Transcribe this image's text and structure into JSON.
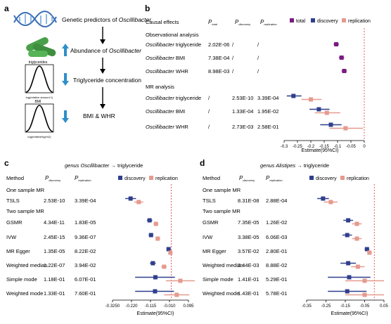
{
  "panel_a": {
    "label": "a",
    "steps": [
      {
        "text": "Genetic predictors of ",
        "italic": "Oscillibacter"
      },
      {
        "text": "Abundance of ",
        "italic": "Oscillibacter"
      },
      {
        "text": "Triglyceride concentration",
        "italic": ""
      },
      {
        "text": "BMI  &  WHR",
        "italic": ""
      }
    ],
    "plot1_title": "triglycerides",
    "plot2_title": "BMI",
    "axis_text": "log(relative amount 1)",
    "axis_text2": "log(relative/kg/m2)"
  },
  "panel_b": {
    "label": "b",
    "col_headers": {
      "effects": "Causal effects",
      "ptotal": "P",
      "ptotal_sub": "total",
      "pdisc": "P",
      "pdisc_sub": "discovery",
      "prep": "P",
      "prep_sub": "replication"
    },
    "legend": [
      {
        "name": "total",
        "color": "#7b1a80"
      },
      {
        "name": "discovery",
        "color": "#2f3f8c"
      },
      {
        "name": "replication",
        "color": "#e59a8e"
      }
    ],
    "sections": [
      "Observational analysis",
      "MR analysis"
    ],
    "xlabel": "Estimate(95%CI)",
    "xticks": [
      "-0.3",
      "-0.25",
      "-0.2",
      "-0.15",
      "-0.1",
      "-0.05",
      "0"
    ]
  },
  "panel_c": {
    "label": "c",
    "title_italic": "genus Oscillibacter",
    "title_rest": " → triglyceride",
    "col_headers": {
      "method": "Method",
      "pdisc": "P",
      "pdisc_sub": "discovery",
      "prep": "P",
      "prep_sub": "replication"
    },
    "legend": [
      {
        "name": "discovery",
        "color": "#2f3f8c"
      },
      {
        "name": "replication",
        "color": "#e59a8e"
      }
    ],
    "sections": [
      "One sample MR",
      "Two sample MR"
    ],
    "xlabel": "Estimate(95%CI)",
    "xticks": [
      "-0.3250",
      "-0.220",
      "-0.115",
      "-0.010",
      "0.095"
    ]
  },
  "panel_d": {
    "label": "d",
    "title_italic": "genus Alistipes",
    "title_rest": " → triglyceride",
    "col_headers": {
      "method": "Method",
      "pdisc": "P",
      "pdisc_sub": "discovery",
      "prep": "P",
      "prep_sub": "replication"
    },
    "legend": [
      {
        "name": "discovery",
        "color": "#2f3f8c"
      },
      {
        "name": "replication",
        "color": "#e59a8e"
      }
    ],
    "sections": [
      "One sample MR",
      "Two sample MR"
    ],
    "xlabel": "Estimate(95%CI)",
    "xticks": [
      "-0.35",
      "-0.25",
      "-0.15",
      "-0.05",
      "0.05"
    ]
  },
  "chart_data": [
    {
      "type": "forest",
      "panel": "b",
      "xlim": [
        -0.3,
        0.0
      ],
      "rows": [
        {
          "label": "Oscillibacter triglyceride",
          "p_total": "2.02E-06",
          "p_discovery": "/",
          "p_replication": "/",
          "section": 0,
          "total": [
            -0.105,
            -0.115,
            -0.095
          ],
          "discovery": null,
          "replication": null
        },
        {
          "label": "Oscillibacter BMI",
          "p_total": "7.38E-04",
          "p_discovery": "/",
          "p_replication": "/",
          "section": 0,
          "total": [
            -0.085,
            -0.095,
            -0.075
          ],
          "discovery": null,
          "replication": null
        },
        {
          "label": "Oscillibacter WHR",
          "p_total": "8.98E-03",
          "p_discovery": "/",
          "p_replication": "/",
          "section": 0,
          "total": [
            -0.075,
            -0.085,
            -0.065
          ],
          "discovery": null,
          "replication": null
        },
        {
          "label": "Oscillibacter triglyceride",
          "p_total": "/",
          "p_discovery": "2.53E-10",
          "p_replication": "3.39E-04",
          "section": 1,
          "total": null,
          "discovery": [
            -0.265,
            -0.29,
            -0.235
          ],
          "replication": [
            -0.2,
            -0.235,
            -0.16
          ]
        },
        {
          "label": "Oscillibacter BMI",
          "p_total": "/",
          "p_discovery": "1.33E-04",
          "p_replication": "1.95E-02",
          "section": 1,
          "total": null,
          "discovery": [
            -0.17,
            -0.205,
            -0.13
          ],
          "replication": [
            -0.14,
            -0.185,
            -0.09
          ]
        },
        {
          "label": "Oscillibacter WHR",
          "p_total": "/",
          "p_discovery": "2.73E-03",
          "p_replication": "2.58E-01",
          "section": 1,
          "total": null,
          "discovery": [
            -0.125,
            -0.165,
            -0.085
          ],
          "replication": [
            -0.07,
            -0.13,
            -0.005
          ]
        }
      ]
    },
    {
      "type": "forest",
      "panel": "c",
      "xlim": [
        -0.325,
        0.095
      ],
      "rows": [
        {
          "label": "TSLS",
          "p_discovery": "2.53E-10",
          "p_replication": "3.39E-04",
          "section": 0,
          "discovery": [
            -0.225,
            -0.255,
            -0.195
          ],
          "replication": [
            -0.18,
            -0.205,
            -0.155
          ]
        },
        {
          "label": "GSMR",
          "p_discovery": "4.34E-11",
          "p_replication": "1.83E-05",
          "section": 1,
          "discovery": [
            -0.12,
            -0.135,
            -0.105
          ],
          "replication": [
            -0.085,
            -0.098,
            -0.072
          ]
        },
        {
          "label": "IVW",
          "p_discovery": "2.45E-15",
          "p_replication": "9.36E-07",
          "section": 1,
          "discovery": [
            -0.112,
            -0.125,
            -0.1
          ],
          "replication": [
            -0.075,
            -0.088,
            -0.062
          ]
        },
        {
          "label": "MR Egger",
          "p_discovery": "1.35E-05",
          "p_replication": "8.22E-02",
          "section": 1,
          "discovery": [
            -0.015,
            -0.022,
            -0.008
          ],
          "replication": [
            -0.005,
            -0.012,
            0.002
          ]
        },
        {
          "label": "Weighted median",
          "p_discovery": "1.22E-07",
          "p_replication": "3.94E-02",
          "section": 1,
          "discovery": [
            -0.102,
            -0.118,
            -0.086
          ],
          "replication": [
            -0.04,
            -0.055,
            -0.025
          ]
        },
        {
          "label": "Simple mode",
          "p_discovery": "1.18E-01",
          "p_replication": "6.07E-01",
          "section": 1,
          "discovery": [
            -0.088,
            -0.2,
            0.02
          ],
          "replication": [
            0.05,
            -0.03,
            0.13
          ]
        },
        {
          "label": "Weighted mode",
          "p_discovery": "1.33E-01",
          "p_replication": "7.60E-01",
          "section": 1,
          "discovery": [
            -0.09,
            -0.2,
            0.015
          ],
          "replication": [
            0.03,
            -0.04,
            0.1
          ]
        }
      ]
    },
    {
      "type": "forest",
      "panel": "d",
      "xlim": [
        -0.35,
        0.05
      ],
      "rows": [
        {
          "label": "TSLS",
          "p_discovery": "8.31E-08",
          "p_replication": "2.88E-04",
          "section": 0,
          "discovery": [
            -0.265,
            -0.295,
            -0.235
          ],
          "replication": [
            -0.225,
            -0.26,
            -0.19
          ]
        },
        {
          "label": "GSMR",
          "p_discovery": "7.35E-05",
          "p_replication": "1.26E-02",
          "section": 1,
          "discovery": [
            -0.135,
            -0.16,
            -0.11
          ],
          "replication": [
            -0.09,
            -0.115,
            -0.065
          ]
        },
        {
          "label": "IVW",
          "p_discovery": "3.38E-05",
          "p_replication": "6.06E-03",
          "section": 1,
          "discovery": [
            -0.14,
            -0.165,
            -0.115
          ],
          "replication": [
            -0.09,
            -0.115,
            -0.065
          ]
        },
        {
          "label": "MR Egger",
          "p_discovery": "3.57E-02",
          "p_replication": "2.80E-01",
          "section": 1,
          "discovery": [
            -0.038,
            -0.05,
            -0.026
          ],
          "replication": [
            -0.025,
            -0.037,
            -0.013
          ]
        },
        {
          "label": "Weighted median",
          "p_discovery": "2.44E-03",
          "p_replication": "8.88E-02",
          "section": 1,
          "discovery": [
            -0.135,
            -0.175,
            -0.095
          ],
          "replication": [
            -0.085,
            -0.12,
            -0.05
          ]
        },
        {
          "label": "Simple mode",
          "p_discovery": "1.41E-01",
          "p_replication": "5.29E-01",
          "section": 1,
          "discovery": [
            -0.13,
            -0.24,
            -0.02
          ],
          "replication": [
            -0.05,
            -0.15,
            0.05
          ]
        },
        {
          "label": "Weighted mode",
          "p_discovery": "1.43E-01",
          "p_replication": "5.78E-01",
          "section": 1,
          "discovery": [
            -0.14,
            -0.24,
            -0.04
          ],
          "replication": [
            -0.05,
            -0.15,
            0.05
          ]
        }
      ]
    }
  ]
}
